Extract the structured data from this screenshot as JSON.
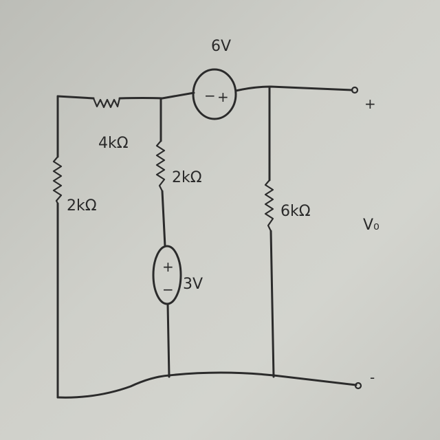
{
  "components": {
    "r_top": {
      "label": "4kΩ"
    },
    "r_left": {
      "label": "2kΩ"
    },
    "r_middle": {
      "label": "2kΩ"
    },
    "r_right": {
      "label": "6kΩ"
    },
    "v_top": {
      "label": "6V",
      "plus": "+",
      "minus": "−"
    },
    "v_middle": {
      "label": "3V",
      "plus": "+",
      "minus": "−"
    }
  },
  "terminals": {
    "top_sign": "+",
    "bottom_sign": "-",
    "output_label": "V₀"
  }
}
